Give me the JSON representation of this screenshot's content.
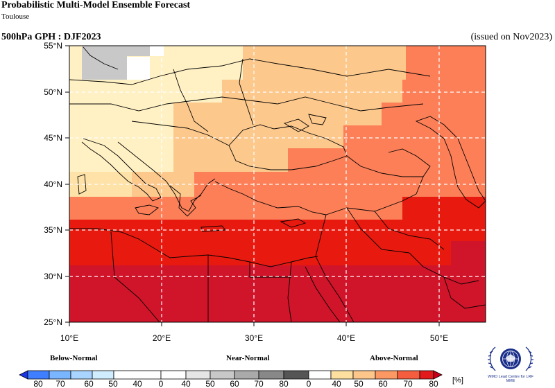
{
  "header": {
    "title": "Probabilistic Multi-Model Ensemble Forecast",
    "subtitle": "Toulouse",
    "variable_period": "500hPa GPH : DJF2023",
    "issued": "(issued on Nov2023)"
  },
  "map": {
    "lon_range": [
      10,
      55
    ],
    "lat_range": [
      25,
      55
    ],
    "lon_ticks": [
      "10°E",
      "20°E",
      "30°E",
      "40°E",
      "50°E"
    ],
    "lat_ticks": [
      "25°N",
      "30°N",
      "35°N",
      "40°N",
      "45°N",
      "50°N",
      "55°N"
    ],
    "gridlines": "dashed-white"
  },
  "legend": {
    "categories": [
      "Below-Normal",
      "Near-Normal",
      "Above-Normal"
    ],
    "below_labels": [
      "80",
      "70",
      "60",
      "50",
      "40"
    ],
    "near_labels": [
      "0",
      "40",
      "50",
      "60",
      "70",
      "80"
    ],
    "above_labels": [
      "0",
      "40",
      "50",
      "60",
      "70",
      "80"
    ],
    "unit": "[%]",
    "below_colors": [
      "#1a36e6",
      "#3f7fff",
      "#79b6ff",
      "#b4dcff",
      "#e0f3ff"
    ],
    "near_colors": [
      "#ffffff",
      "#e6e6e6",
      "#c8c8c8",
      "#aaaaaa",
      "#888888",
      "#555555"
    ],
    "above_colors": [
      "#fff3c2",
      "#fde0a0",
      "#fdc68a",
      "#fb9863",
      "#f55d3e",
      "#e31a1c",
      "#c8001e"
    ]
  },
  "logo": {
    "text": "WMO Lead Centre for LRF MME"
  }
}
